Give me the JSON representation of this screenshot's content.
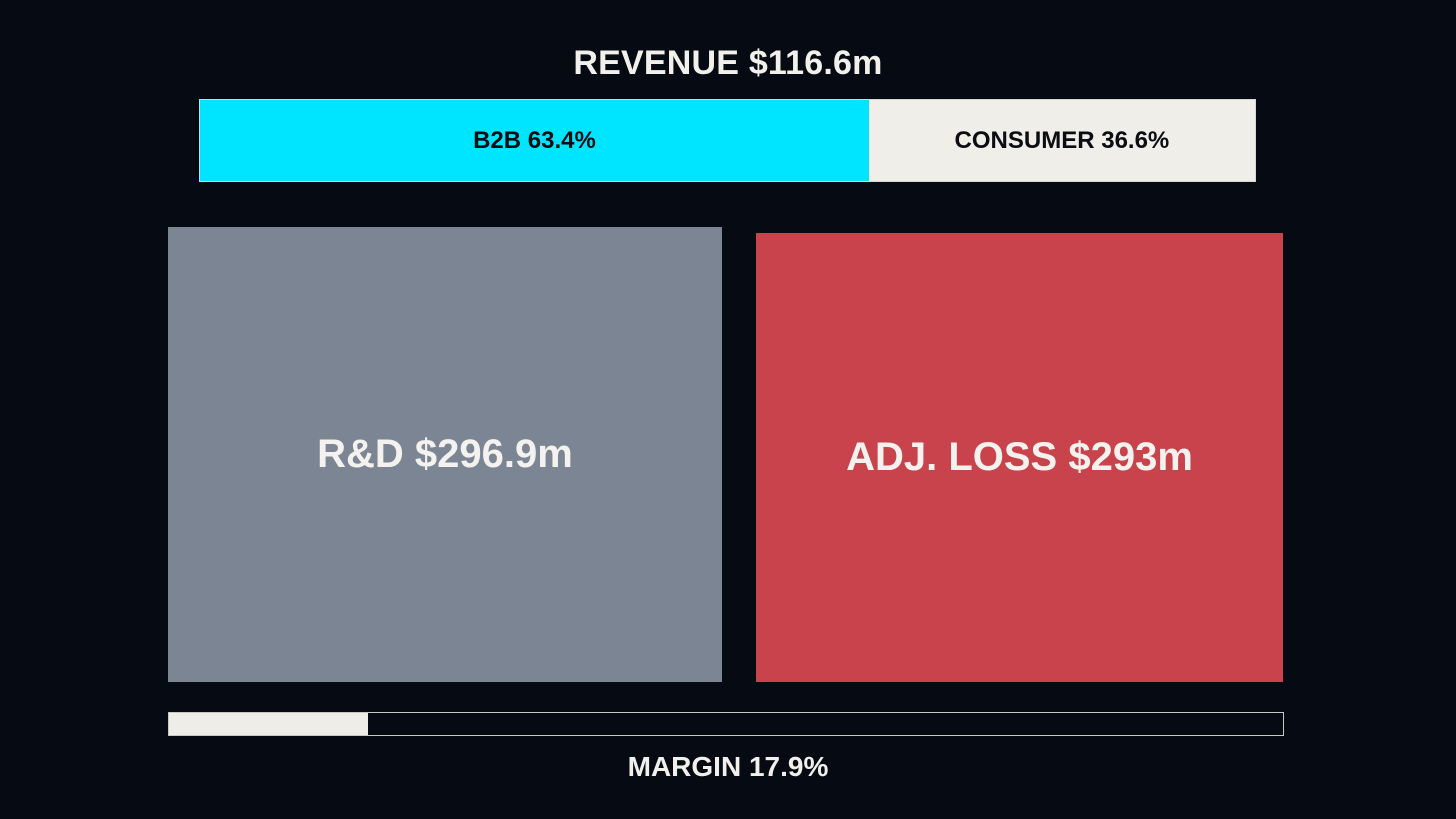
{
  "chart_data": {
    "type": "bar",
    "title": "REVENUE $116.6m",
    "revenue_split": {
      "segments": [
        {
          "label": "B2B 63.4%",
          "name": "B2B",
          "value": 63.4,
          "color": "#00e5ff"
        },
        {
          "label": "CONSUMER 36.6%",
          "name": "CONSUMER",
          "value": 36.6,
          "color": "#f0eee9"
        }
      ]
    },
    "boxes": [
      {
        "label": "R&D $296.9m",
        "value": 296.9,
        "color": "#7b8594"
      },
      {
        "label": "ADJ. LOSS $293m",
        "value": 293,
        "color": "#c8434b"
      }
    ],
    "margin": {
      "label": "MARGIN 17.9%",
      "value": 17.9,
      "fill_color": "#efede8"
    }
  }
}
